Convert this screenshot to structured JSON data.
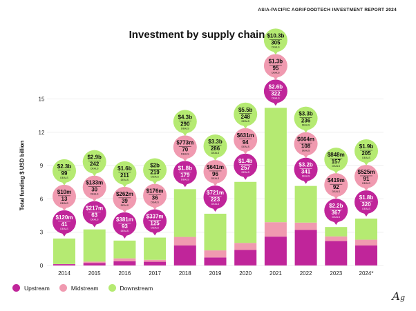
{
  "header": "ASIA-PACIFIC AGRIFOODTECH INVESTMENT REPORT 2024",
  "logo": "AG",
  "chart_data": {
    "type": "bar",
    "stacked": true,
    "title": "Investment by supply chain",
    "ylabel": "Total funding $ USD billion",
    "xlabel": "",
    "ylim": [
      0,
      15
    ],
    "yticks": [
      "0",
      "3",
      "6",
      "9",
      "12",
      "15"
    ],
    "categories": [
      "2014",
      "2015",
      "2016",
      "2017",
      "2018",
      "2019",
      "2020",
      "2021",
      "2022",
      "2023",
      "2024*"
    ],
    "colors": {
      "Upstream": "#c0259a",
      "Midstream": "#f09ab0",
      "Downstream": "#b5ea72"
    },
    "series": [
      {
        "name": "Upstream",
        "values": [
          0.12,
          0.217,
          0.381,
          0.337,
          1.8,
          0.721,
          1.4,
          2.6,
          3.2,
          2.2,
          1.8
        ],
        "labels": [
          "$120m",
          "$217m",
          "$381m",
          "$337m",
          "$1.8b",
          "$721m",
          "$1.4b",
          "$2.6b",
          "$3.2b",
          "$2.2b",
          "$1.8b"
        ],
        "deals": [
          "41",
          "63",
          "93",
          "125",
          "179",
          "223",
          "257",
          "322",
          "341",
          "367",
          "320"
        ]
      },
      {
        "name": "Midstream",
        "values": [
          0.01,
          0.133,
          0.262,
          0.176,
          0.773,
          0.641,
          0.631,
          1.3,
          0.664,
          0.419,
          0.525
        ],
        "labels": [
          "$10m",
          "$133m",
          "$262m",
          "$176m",
          "$773m",
          "$641m",
          "$631m",
          "$1.3b",
          "$664m",
          "$419m",
          "$525m"
        ],
        "deals": [
          "13",
          "30",
          "39",
          "36",
          "70",
          "96",
          "94",
          "95",
          "108",
          "92",
          "91"
        ]
      },
      {
        "name": "Downstream",
        "values": [
          2.3,
          2.9,
          1.6,
          2.0,
          4.3,
          3.3,
          5.5,
          10.3,
          3.3,
          0.848,
          1.9
        ],
        "labels": [
          "$2.3b",
          "$2.9b",
          "$1.6b",
          "$2b",
          "$4.3b",
          "$3.3b",
          "$5.5b",
          "$10.3b",
          "$3.3b",
          "$848m",
          "$1.9b"
        ],
        "deals": [
          "99",
          "242",
          "211",
          "219",
          "290",
          "286",
          "248",
          "305",
          "236",
          "157",
          "205"
        ]
      }
    ],
    "deals_label": "DEALS",
    "legend": [
      "Upstream",
      "Midstream",
      "Downstream"
    ],
    "legend_position": "bottom-left",
    "grid": true
  }
}
